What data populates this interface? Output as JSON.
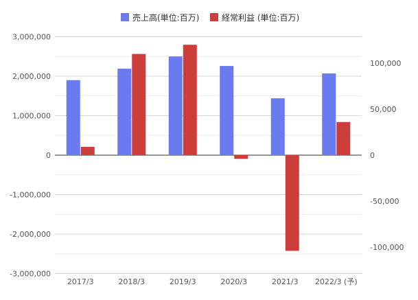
{
  "chart_data": {
    "type": "bar",
    "categories": [
      "2017/3",
      "2018/3",
      "2019/3",
      "2020/3",
      "2021/3",
      "2022/3 (予)"
    ],
    "series": [
      {
        "name": "売上高(単位:百万)",
        "axis": "left",
        "color": "#6a7bf0",
        "values": [
          1900000,
          2190000,
          2500000,
          2260000,
          1440000,
          2070000
        ]
      },
      {
        "name": "経常利益 (単位:百万)",
        "axis": "right",
        "color": "#cc3e3a",
        "values": [
          9000,
          110000,
          120000,
          -4000,
          -104000,
          36000
        ]
      }
    ],
    "y_left": {
      "ylim": [
        -3000000,
        3000000
      ],
      "ticks": [
        3000000,
        2000000,
        1000000,
        0,
        -1000000,
        -2000000,
        -3000000
      ],
      "tick_labels": [
        "3,000,000",
        "2,000,000",
        "1,000,000",
        "0",
        "-1,000,000",
        "-2,000,000",
        "-3,000,000"
      ]
    },
    "y_right": {
      "ylim": [
        -130000,
        130000
      ],
      "ticks": [
        100000,
        50000,
        0,
        -50000,
        -100000
      ],
      "tick_labels": [
        "100,000",
        "50,000",
        "0",
        "-50,000",
        "-100,000"
      ]
    },
    "legend_position": "top",
    "grid": true
  }
}
